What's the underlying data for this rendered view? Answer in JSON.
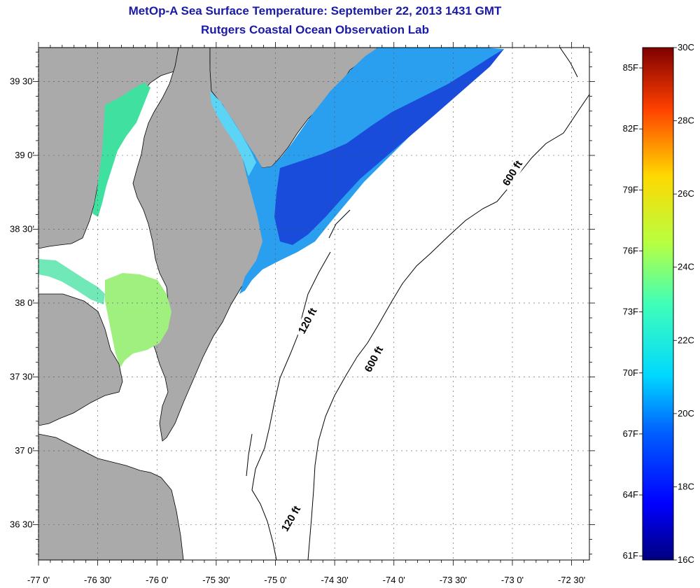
{
  "title_line1": "MetOp-A Sea Surface Temperature:  September 22, 2013 1431 GMT",
  "title_line2": "Rutgers Coastal Ocean Observation Lab",
  "map": {
    "lon_labels": [
      "-77 0'",
      "-76 30'",
      "-76 0'",
      "-75 30'",
      "-75 0'",
      "-74 30'",
      "-74 0'",
      "-73 30'",
      "-73 0'",
      "-72 30'"
    ],
    "lat_labels": [
      "39 30'",
      "39 0'",
      "38 30'",
      "38 0'",
      "37 30'",
      "37 0'",
      "36 30'"
    ],
    "contour_labels": [
      {
        "text": "600 ft",
        "lon": -73.0,
        "lat": 38.88,
        "angle": -58
      },
      {
        "text": "600 ft",
        "lon": -74.17,
        "lat": 37.62,
        "angle": -62
      },
      {
        "text": "120 ft",
        "lon": -74.73,
        "lat": 37.88,
        "angle": -62
      },
      {
        "text": "120 ft",
        "lon": -74.87,
        "lat": 36.54,
        "angle": -60
      }
    ],
    "colors": {
      "land": "#aaaaaa",
      "no_data": "#ffffff",
      "grid": "#666666"
    }
  },
  "colorbar": {
    "celsius_labels": [
      "30C",
      "28C",
      "26C",
      "24C",
      "22C",
      "20C",
      "18C",
      "16C"
    ],
    "fahrenheit_labels": [
      "85F",
      "82F",
      "79F",
      "76F",
      "73F",
      "70F",
      "67F",
      "64F",
      "61F"
    ],
    "range_c": [
      16,
      30
    ],
    "colormap": "jet"
  }
}
